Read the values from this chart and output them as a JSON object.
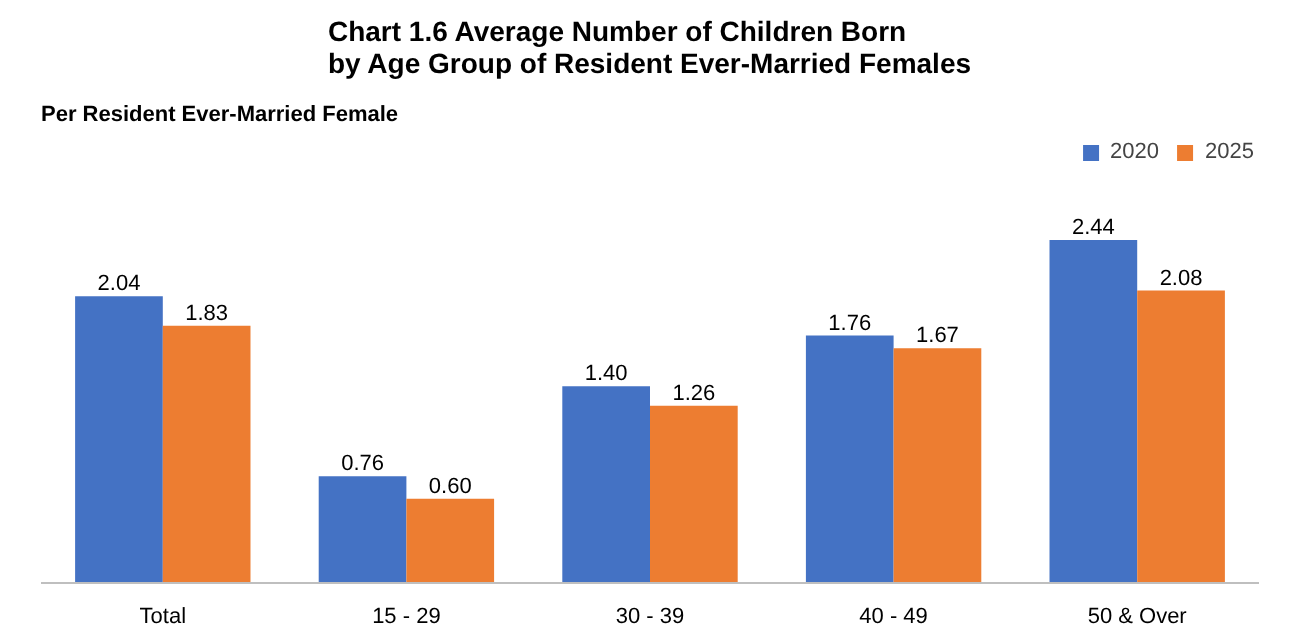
{
  "chart_data": {
    "type": "bar",
    "title": "Chart 1.6  Average Number of Children Born\nby Age Group of Resident Ever-Married Females",
    "annotations": [
      "Per Resident Ever-Married Female"
    ],
    "categories": [
      "Total",
      "15 - 29",
      "30 - 39",
      "40 - 49",
      "50 & Over"
    ],
    "series": [
      {
        "name": "2020",
        "color": "#4472c4",
        "values": [
          2.04,
          0.76,
          1.4,
          1.76,
          2.44
        ],
        "value_labels": [
          "2.04",
          "0.76",
          "1.40",
          "1.76",
          "2.44"
        ]
      },
      {
        "name": "2025",
        "color": "#ed7d31",
        "values": [
          1.83,
          0.6,
          1.26,
          1.67,
          2.08
        ],
        "value_labels": [
          "1.83",
          "0.60",
          "1.26",
          "1.67",
          "2.08"
        ]
      }
    ],
    "legend": "top right",
    "grid": false,
    "tick_labels": "x"
  }
}
